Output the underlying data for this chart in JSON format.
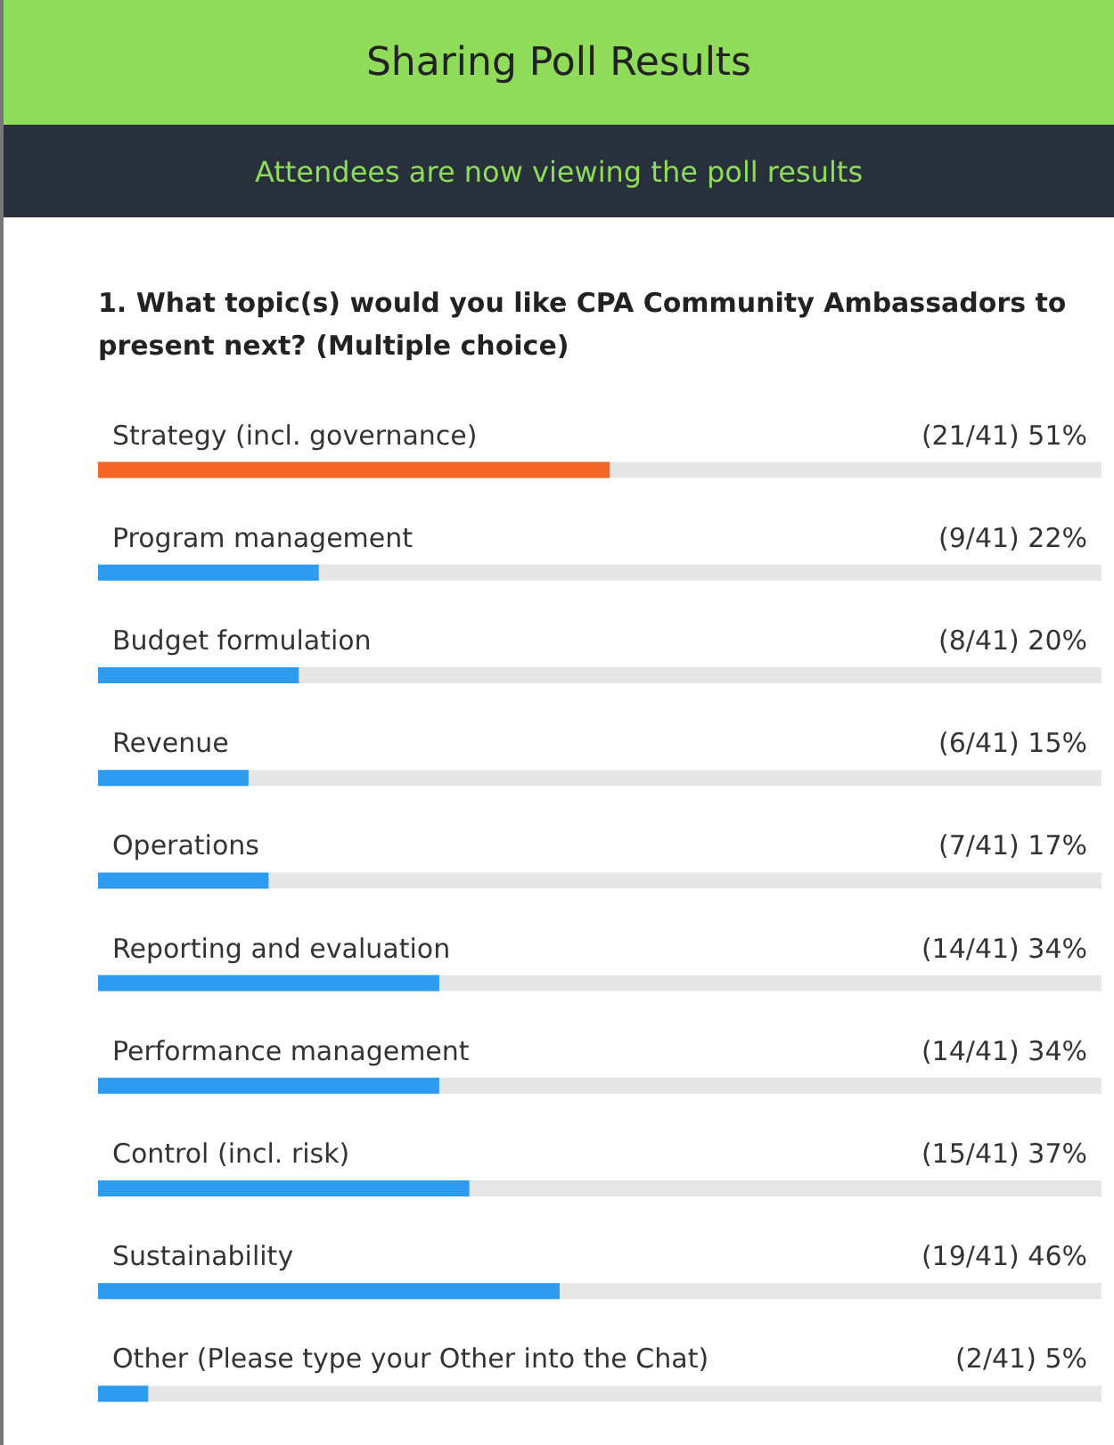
{
  "chart_data": {
    "type": "bar",
    "orientation": "horizontal",
    "title": "Sharing Poll Results",
    "subtitle": "Attendees are now viewing the poll results",
    "annotations": [
      "1. What topic(s) would you like CPA Community Ambassadors to present next? (Multiple choice)"
    ],
    "categories": [
      "Strategy (incl. governance)",
      "Program management",
      "Budget formulation",
      "Revenue",
      "Operations",
      "Reporting and evaluation",
      "Performance management",
      "Control (incl. risk)",
      "Sustainability",
      "Other (Please type your Other into the Chat)"
    ],
    "values": [
      51,
      22,
      20,
      15,
      17,
      34,
      34,
      37,
      46,
      5
    ],
    "colors": [
      "#f26522",
      "#2d9cf0",
      "#2d9cf0",
      "#2d9cf0",
      "#2d9cf0",
      "#2d9cf0",
      "#2d9cf0",
      "#2d9cf0",
      "#2d9cf0",
      "#2d9cf0"
    ],
    "value_labels": [
      "(21/41) 51%",
      "(9/41) 22%",
      "(8/41) 20%",
      "(6/41) 15%",
      "(7/41) 17%",
      "(14/41) 34%",
      "(14/41) 34%",
      "(15/41) 37%",
      "(19/41) 46%",
      "(2/41) 5%"
    ],
    "xlim": [
      0,
      100
    ],
    "tick_labels": "y"
  }
}
